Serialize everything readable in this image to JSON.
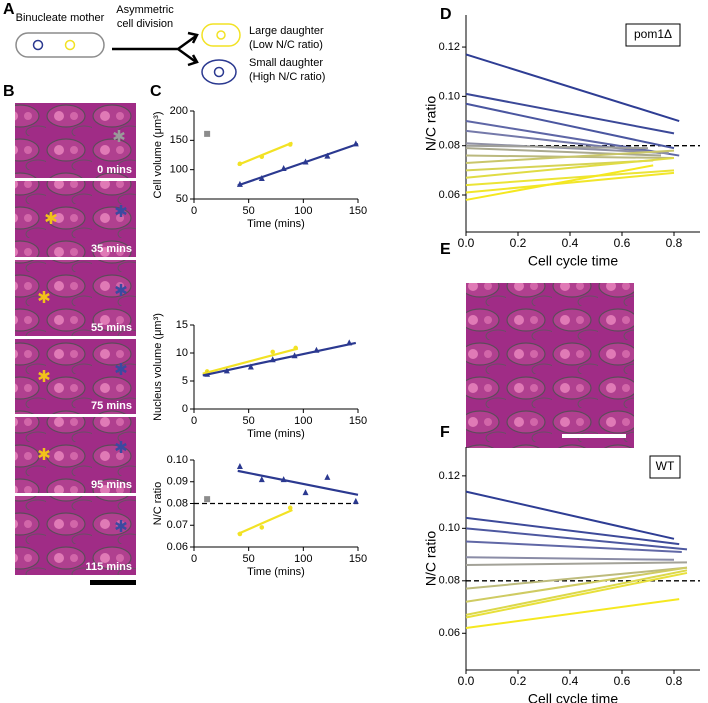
{
  "panel_labels": [
    "A",
    "B",
    "C",
    "D",
    "E",
    "F"
  ],
  "diagram": {
    "mother": "Binucleate mother",
    "division": [
      "Asymmetric",
      "cell division"
    ],
    "large": [
      "Large daughter",
      "(Low N/C ratio)"
    ],
    "small": [
      "Small daughter",
      "(High N/C ratio)"
    ]
  },
  "timelapse": {
    "times": [
      "0 mins",
      "35 mins",
      "55 mins",
      "75 mins",
      "95 mins",
      "115 mins"
    ]
  },
  "chart_data": [
    {
      "type": "scatter",
      "ylabel": "Cell volume (μm³)",
      "xlabel": "Time (mins)",
      "xlim": [
        0,
        150
      ],
      "xticks": [
        0,
        50,
        100,
        150
      ],
      "ylim": [
        50,
        200
      ],
      "yticks": [
        50,
        100,
        150,
        200
      ],
      "series": [
        {
          "color": "#8c8c8c",
          "marker": "square",
          "x": [
            12
          ],
          "values": [
            161
          ]
        },
        {
          "color": "#f2e224",
          "marker": "circle",
          "x": [
            42,
            62,
            88
          ],
          "values": [
            110,
            122,
            143
          ]
        },
        {
          "color": "#2b3990",
          "marker": "triangle",
          "x": [
            42,
            62,
            82,
            102,
            122,
            148
          ],
          "values": [
            75,
            85,
            102,
            113,
            123,
            144
          ]
        },
        {
          "color": "#f2e224",
          "mode": "line",
          "x": [
            40,
            90
          ],
          "values": [
            108,
            146
          ]
        },
        {
          "color": "#2b3990",
          "mode": "line",
          "x": [
            40,
            150
          ],
          "values": [
            73,
            144
          ]
        }
      ]
    },
    {
      "type": "scatter",
      "ylabel": "Nucleus volume (μm³)",
      "xlabel": "Time (mins)",
      "xlim": [
        0,
        150
      ],
      "xticks": [
        0,
        50,
        100,
        150
      ],
      "ylim": [
        0,
        15
      ],
      "yticks": [
        0,
        5,
        10,
        15
      ],
      "series": [
        {
          "color": "#f2e224",
          "marker": "circle",
          "x": [
            12,
            72,
            93
          ],
          "values": [
            6.7,
            10.2,
            10.9
          ]
        },
        {
          "color": "#2b3990",
          "marker": "triangle",
          "x": [
            12,
            30,
            52,
            72,
            92,
            112,
            142
          ],
          "values": [
            6.2,
            6.8,
            7.5,
            8.8,
            9.5,
            10.5,
            11.8
          ]
        },
        {
          "color": "#f2e224",
          "mode": "line",
          "x": [
            8,
            95
          ],
          "values": [
            6.3,
            10.8
          ]
        },
        {
          "color": "#2b3990",
          "mode": "line",
          "x": [
            8,
            148
          ],
          "values": [
            6.0,
            11.8
          ]
        }
      ]
    },
    {
      "type": "scatter",
      "ylabel": "N/C  ratio",
      "xlabel": "Time (mins)",
      "xlim": [
        0,
        150
      ],
      "xticks": [
        0,
        50,
        100,
        150
      ],
      "ylim": [
        0.06,
        0.1
      ],
      "yticks": [
        0.06,
        0.07,
        0.08,
        0.09,
        {
          "value": 0.1,
          "label": "0.10"
        }
      ],
      "hline": 0.08,
      "series": [
        {
          "color": "#8c8c8c",
          "marker": "square",
          "x": [
            12
          ],
          "values": [
            0.082
          ]
        },
        {
          "color": "#f2e224",
          "marker": "circle",
          "x": [
            42,
            62,
            88
          ],
          "values": [
            0.066,
            0.069,
            0.078
          ]
        },
        {
          "color": "#2b3990",
          "marker": "triangle",
          "x": [
            42,
            62,
            82,
            102,
            122,
            148
          ],
          "values": [
            0.097,
            0.091,
            0.091,
            0.085,
            0.092,
            0.081
          ]
        },
        {
          "color": "#f2e224",
          "mode": "line",
          "x": [
            40,
            90
          ],
          "values": [
            0.066,
            0.077
          ]
        },
        {
          "color": "#2b3990",
          "mode": "line",
          "x": [
            40,
            150
          ],
          "values": [
            0.095,
            0.084
          ]
        }
      ]
    },
    {
      "type": "line",
      "ylabel": "N/C  ratio",
      "xlabel": "Cell cycle time",
      "annotation": "pom1Δ",
      "xlim": [
        0,
        0.9
      ],
      "xticks": [
        {
          "value": 0,
          "label": "0.0"
        },
        0.2,
        0.4,
        0.6,
        0.8
      ],
      "ylim": [
        0.045,
        0.133
      ],
      "yticks": [
        0.06,
        0.08,
        {
          "value": 0.1,
          "label": "0.10"
        },
        0.12
      ],
      "hline": 0.08,
      "series": [
        {
          "color": "#2e3d94",
          "x": [
            0,
            0.82
          ],
          "values": [
            0.117,
            0.09
          ]
        },
        {
          "color": "#3b4898",
          "x": [
            0,
            0.8
          ],
          "values": [
            0.101,
            0.085
          ]
        },
        {
          "color": "#4a56a0",
          "x": [
            0,
            0.8
          ],
          "values": [
            0.097,
            0.079
          ]
        },
        {
          "color": "#5e66a6",
          "x": [
            0,
            0.82
          ],
          "values": [
            0.09,
            0.076
          ]
        },
        {
          "color": "#7479aa",
          "x": [
            0,
            0.75
          ],
          "values": [
            0.086,
            0.077
          ]
        },
        {
          "color": "#8f90a4",
          "x": [
            0,
            0.78
          ],
          "values": [
            0.081,
            0.077
          ]
        },
        {
          "color": "#a0a09a",
          "x": [
            0,
            0.7
          ],
          "values": [
            0.08,
            0.079
          ]
        },
        {
          "color": "#aaa98e",
          "x": [
            0,
            0.75
          ],
          "values": [
            0.079,
            0.076
          ]
        },
        {
          "color": "#bbb97e",
          "x": [
            0,
            0.8
          ],
          "values": [
            0.076,
            0.075
          ]
        },
        {
          "color": "#c9c66a",
          "x": [
            0,
            0.8
          ],
          "values": [
            0.073,
            0.078
          ]
        },
        {
          "color": "#d6d354",
          "x": [
            0,
            0.72
          ],
          "values": [
            0.07,
            0.074
          ]
        },
        {
          "color": "#e0dc44",
          "x": [
            0,
            0.8
          ],
          "values": [
            0.067,
            0.075
          ]
        },
        {
          "color": "#ebe436",
          "x": [
            0,
            0.8
          ],
          "values": [
            0.064,
            0.07
          ]
        },
        {
          "color": "#f1e62a",
          "x": [
            0,
            0.8
          ],
          "values": [
            0.061,
            0.069
          ]
        },
        {
          "color": "#f5e820",
          "x": [
            0,
            0.72
          ],
          "values": [
            0.058,
            0.072
          ]
        }
      ]
    },
    {
      "type": "line",
      "ylabel": "N/C ratio",
      "xlabel": "Cell cycle time",
      "annotation": "WT",
      "xlim": [
        0,
        0.9
      ],
      "xticks": [
        {
          "value": 0,
          "label": "0.0"
        },
        0.2,
        0.4,
        0.6,
        0.8
      ],
      "ylim": [
        0.046,
        0.131
      ],
      "yticks": [
        0.06,
        0.08,
        {
          "value": 0.1,
          "label": "0.10"
        },
        0.12
      ],
      "hline": 0.08,
      "series": [
        {
          "color": "#2e3d94",
          "x": [
            0,
            0.8
          ],
          "values": [
            0.114,
            0.096
          ]
        },
        {
          "color": "#3d4a9a",
          "x": [
            0,
            0.82
          ],
          "values": [
            0.104,
            0.094
          ]
        },
        {
          "color": "#4d58a0",
          "x": [
            0,
            0.85
          ],
          "values": [
            0.1,
            0.092
          ]
        },
        {
          "color": "#6168a6",
          "x": [
            0,
            0.83
          ],
          "values": [
            0.095,
            0.091
          ]
        },
        {
          "color": "#8a8ca6",
          "x": [
            0,
            0.8
          ],
          "values": [
            0.089,
            0.088
          ]
        },
        {
          "color": "#a3a298",
          "x": [
            0,
            0.85
          ],
          "values": [
            0.086,
            0.087
          ]
        },
        {
          "color": "#bdbb7c",
          "x": [
            0,
            0.85
          ],
          "values": [
            0.077,
            0.085
          ]
        },
        {
          "color": "#cfcb62",
          "x": [
            0,
            0.85
          ],
          "values": [
            0.072,
            0.085
          ]
        },
        {
          "color": "#dcd84a",
          "x": [
            0,
            0.85
          ],
          "values": [
            0.067,
            0.084
          ]
        },
        {
          "color": "#e8e03a",
          "x": [
            0,
            0.85
          ],
          "values": [
            0.066,
            0.083
          ]
        },
        {
          "color": "#f5e820",
          "x": [
            0,
            0.82
          ],
          "values": [
            0.062,
            0.073
          ]
        }
      ]
    }
  ]
}
